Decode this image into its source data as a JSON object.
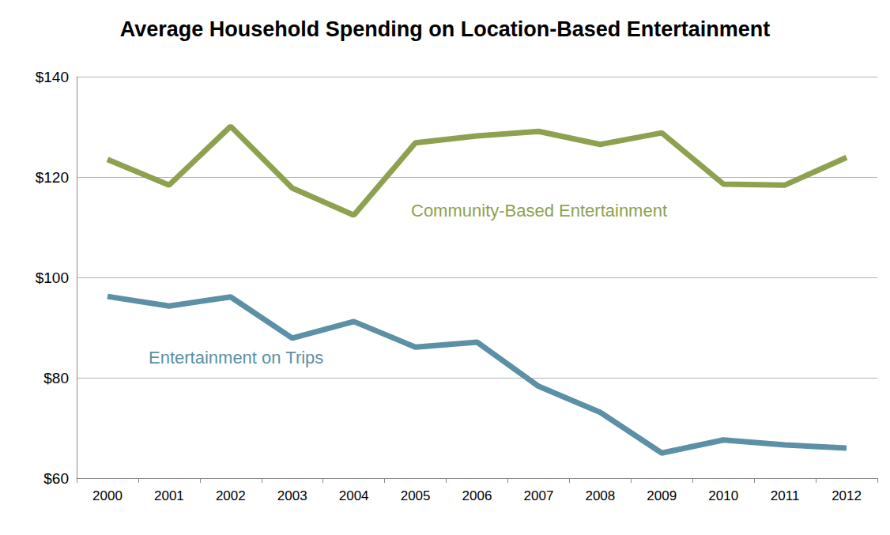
{
  "chart_data": {
    "type": "line",
    "title": "Average Household Spending on Location-Based Entertainment",
    "categories": [
      "2000",
      "2001",
      "2002",
      "2003",
      "2004",
      "2005",
      "2006",
      "2007",
      "2008",
      "2009",
      "2010",
      "2011",
      "2012"
    ],
    "series": [
      {
        "name": "Community-Based Entertainment",
        "color": "#8da14f",
        "values": [
          123.5,
          118.4,
          130.1,
          117.8,
          112.4,
          126.8,
          128.2,
          129.1,
          126.5,
          128.8,
          118.6,
          118.4,
          123.9
        ]
      },
      {
        "name": "Entertainment on Trips",
        "color": "#5b90a6",
        "values": [
          96.2,
          94.3,
          96.1,
          87.9,
          91.2,
          86.1,
          87.1,
          78.3,
          73.1,
          65.0,
          67.6,
          66.6,
          66.0
        ]
      }
    ],
    "ylim": [
      60,
      140
    ],
    "yticks": [
      {
        "value": 60,
        "label": "$60"
      },
      {
        "value": 80,
        "label": "$80"
      },
      {
        "value": 100,
        "label": "$100"
      },
      {
        "value": 120,
        "label": "$120"
      },
      {
        "value": 140,
        "label": "$140"
      }
    ],
    "grid": true
  }
}
